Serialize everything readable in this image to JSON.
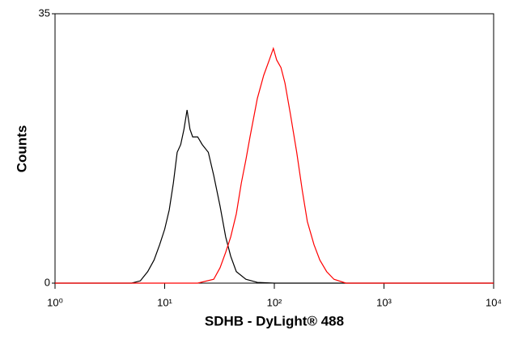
{
  "chart_data": {
    "type": "line",
    "xlabel": "SDHB - DyLight® 488",
    "ylabel": "Counts",
    "xscale": "log",
    "xlim": [
      1,
      10000
    ],
    "xticks": [
      {
        "value": 1,
        "label": "10⁰"
      },
      {
        "value": 10,
        "label": "10¹"
      },
      {
        "value": 100,
        "label": "10²"
      },
      {
        "value": 1000,
        "label": "10³"
      },
      {
        "value": 10000,
        "label": "10⁴"
      }
    ],
    "ylim": [
      0,
      35
    ],
    "yticks": [
      0,
      35
    ],
    "series": [
      {
        "color": "#000000",
        "x": [
          1,
          5,
          6,
          7,
          8,
          9,
          10,
          11,
          12,
          13,
          14,
          15,
          16,
          17,
          18,
          20,
          22,
          25,
          28,
          32,
          36,
          40,
          45,
          55,
          70,
          100,
          10000
        ],
        "values": [
          0,
          0,
          0.3,
          1.5,
          3,
          5,
          7,
          9.5,
          13,
          17,
          18,
          20,
          22.5,
          20,
          19,
          19,
          18,
          17,
          14,
          10,
          6,
          3.5,
          1.5,
          0.5,
          0.1,
          0,
          0
        ]
      },
      {
        "color": "#ff0000",
        "x": [
          1,
          20,
          28,
          32,
          36,
          40,
          45,
          50,
          55,
          60,
          70,
          80,
          90,
          98,
          105,
          115,
          125,
          140,
          160,
          180,
          200,
          230,
          260,
          300,
          350,
          450,
          10000
        ],
        "values": [
          0,
          0,
          0.5,
          2,
          4,
          6,
          9,
          13,
          16,
          19,
          24,
          27,
          29,
          30.5,
          29,
          28,
          26,
          22,
          17,
          12,
          8,
          5,
          3,
          1.5,
          0.5,
          0,
          0
        ]
      }
    ]
  }
}
